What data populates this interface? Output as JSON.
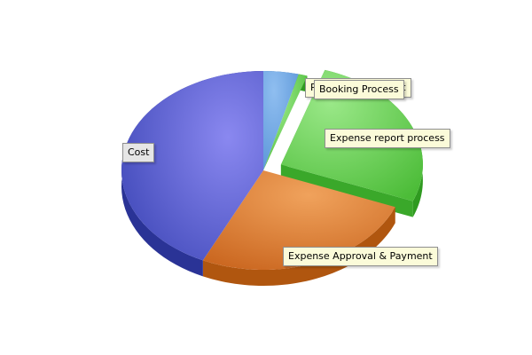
{
  "chart_data": {
    "type": "pie",
    "style": "3d-exploded",
    "title": "",
    "slices": [
      {
        "label": "Policy Management",
        "value": 4,
        "color": "#6ea8e6",
        "label_style": "yellow"
      },
      {
        "label": "Booking Process",
        "value": 1,
        "color": "#6fd35a",
        "label_style": "yellow"
      },
      {
        "label": "Expense report process",
        "value": 26,
        "color": "#6fd35a",
        "label_style": "yellow",
        "exploded": true
      },
      {
        "label": "Expense Approval & Payment",
        "value": 26,
        "color": "#e07a2c",
        "label_style": "yellow"
      },
      {
        "label": "Cost",
        "value": 43,
        "color": "#5560d0",
        "label_style": "grey"
      }
    ]
  }
}
